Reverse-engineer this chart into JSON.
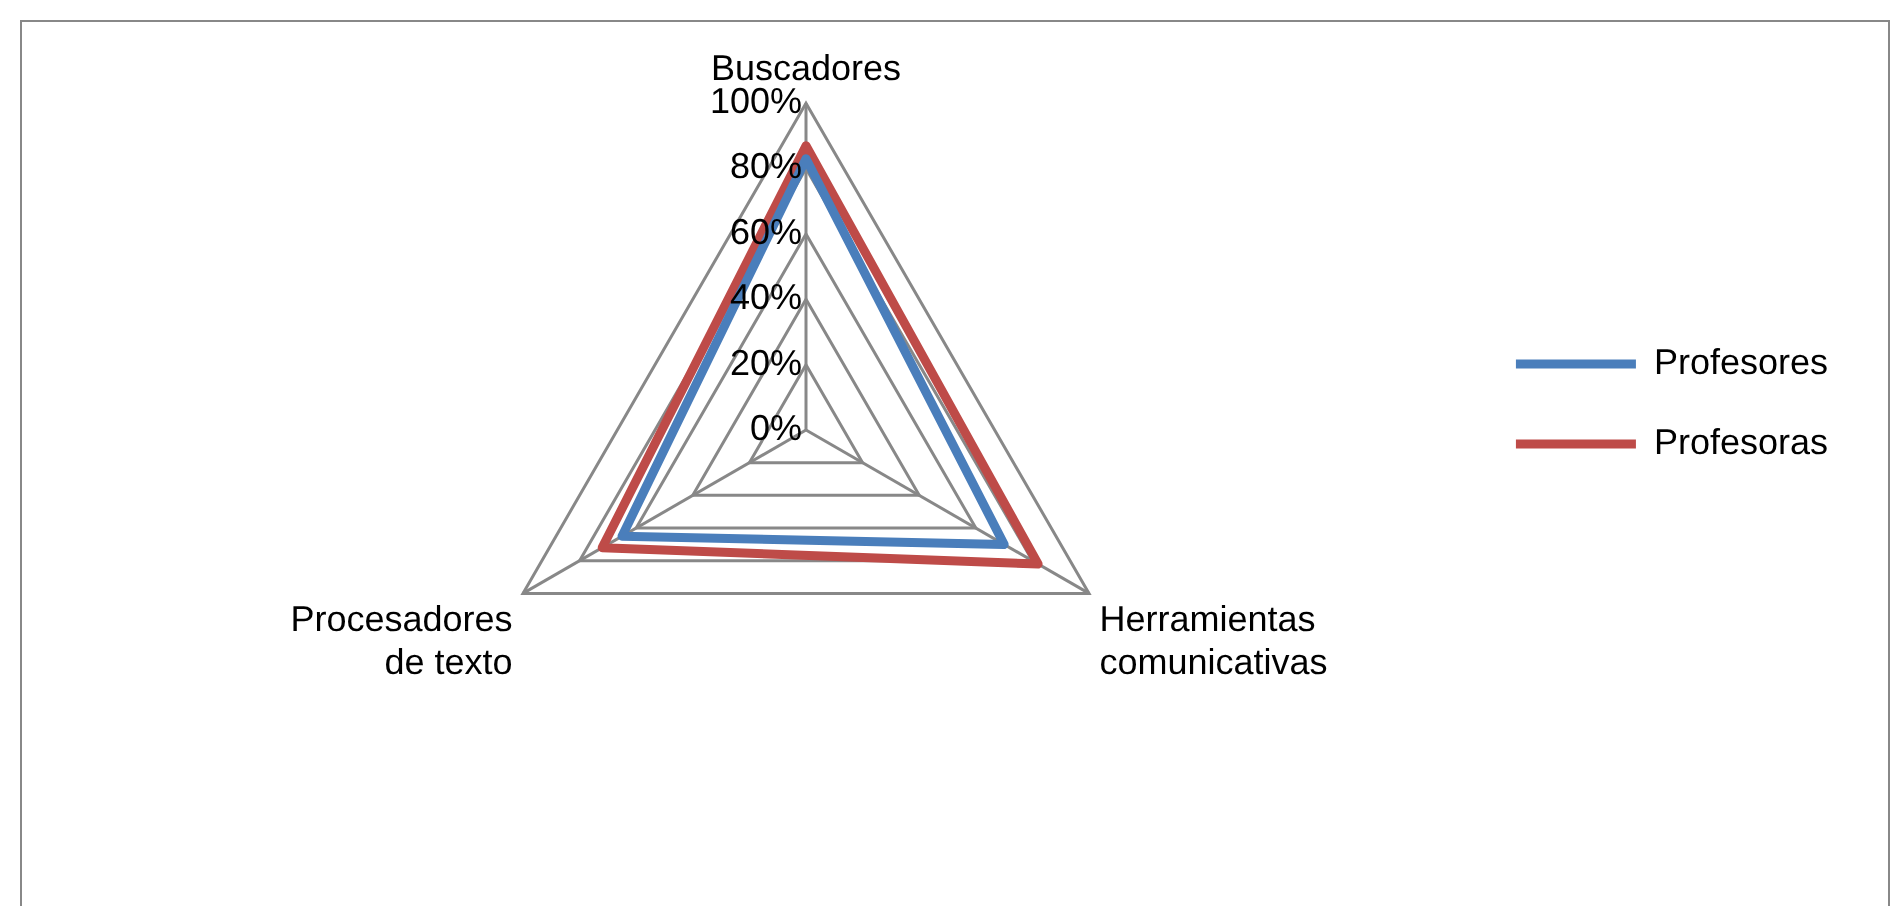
{
  "chart_data": {
    "type": "radar",
    "categories": [
      "Buscadores",
      "Herramientas comunicativas",
      "Procesadores de texto"
    ],
    "series": [
      {
        "name": "Profesores",
        "color": "#4a7ebb",
        "values": [
          0.83,
          0.7,
          0.65
        ]
      },
      {
        "name": "Profesoras",
        "color": "#be4b48",
        "values": [
          0.87,
          0.82,
          0.72
        ]
      }
    ],
    "ylim": [
      0,
      1
    ],
    "yticks": [
      {
        "value": 0,
        "label": "0%"
      },
      {
        "value": 0.2,
        "label": "20%"
      },
      {
        "value": 0.4,
        "label": "40%"
      },
      {
        "value": 0.6,
        "label": "60%"
      },
      {
        "value": 0.8,
        "label": "80%"
      },
      {
        "value": 1,
        "label": "100%"
      }
    ],
    "grid": true,
    "legend": "right",
    "marker": "none",
    "line_style": "solid"
  }
}
